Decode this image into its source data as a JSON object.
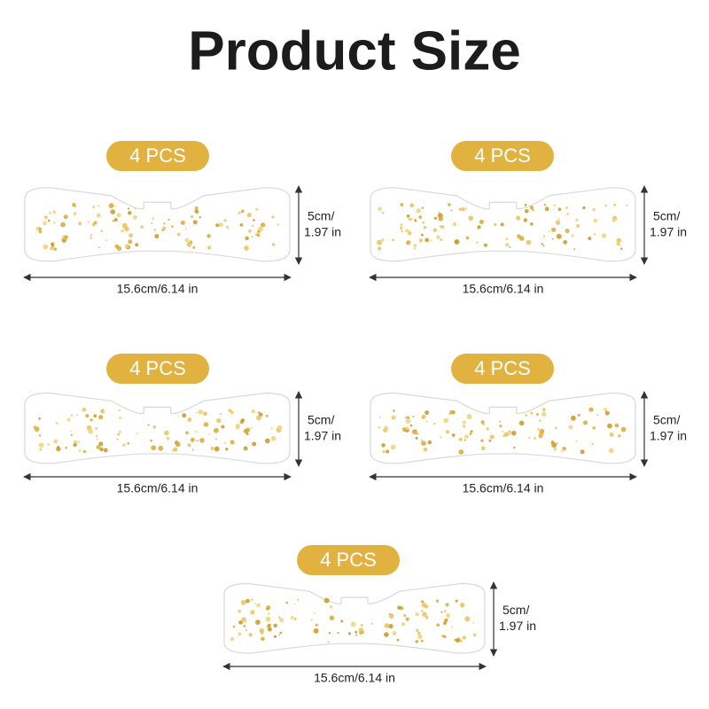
{
  "header": {
    "title": "Product Size"
  },
  "items": [
    {
      "badge": "4 PCS",
      "height_label": [
        "5cm/",
        "1.97 in"
      ],
      "width_label": "15.6cm/6.14 in"
    },
    {
      "badge": "4 PCS",
      "height_label": [
        "5cm/",
        "1.97 in"
      ],
      "width_label": "15.6cm/6.14 in"
    },
    {
      "badge": "4 PCS",
      "height_label": [
        "5cm/",
        "1.97 in"
      ],
      "width_label": "15.6cm/6.14 in"
    },
    {
      "badge": "4 PCS",
      "height_label": [
        "5cm/",
        "1.97 in"
      ],
      "width_label": "15.6cm/6.14 in"
    },
    {
      "badge": "4 PCS",
      "height_label": [
        "5cm/",
        "1.97 in"
      ],
      "width_label": "15.6cm/6.14 in"
    }
  ]
}
